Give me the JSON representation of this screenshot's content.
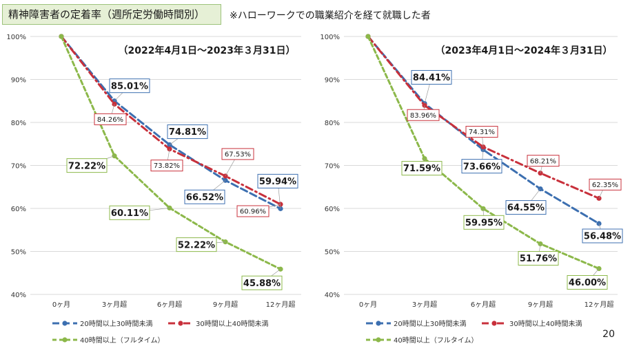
{
  "header": {
    "title": "精神障害者の定着率（週所定労働時間別）",
    "note": "※ハローワークでの職業紹介を経て就職した者"
  },
  "page_number": "20",
  "colors": {
    "blue": "#3c6fb0",
    "red": "#c8303b",
    "green": "#8cb84a",
    "grid": "#d9d9d9"
  },
  "chart_data": [
    {
      "type": "line",
      "title": "（2022年4月1日～2023年３月31日）",
      "categories": [
        "0ヶ月",
        "3ヶ月超",
        "6ヶ月超",
        "9ヶ月超",
        "12ヶ月超"
      ],
      "ylim": [
        40,
        100
      ],
      "y_ticks": [
        "40%",
        "50%",
        "60%",
        "70%",
        "80%",
        "90%",
        "100%"
      ],
      "grid": true,
      "legend_position": "bottom",
      "series": [
        {
          "name": "20時間以上30時間未満",
          "values": [
            100,
            85.01,
            74.81,
            66.52,
            59.94
          ],
          "labels": [
            "",
            "85.01%",
            "74.81%",
            "66.52%",
            "59.94%"
          ]
        },
        {
          "name": "30時間以上40時間未満",
          "values": [
            100,
            84.26,
            73.82,
            67.53,
            60.96
          ],
          "labels": [
            "",
            "84.26%",
            "73.82%",
            "67.53%",
            "60.96%"
          ]
        },
        {
          "name": "40時間以上（フルタイム）",
          "values": [
            100,
            72.22,
            60.11,
            52.22,
            45.88
          ],
          "labels": [
            "",
            "72.22%",
            "60.11%",
            "52.22%",
            "45.88%"
          ]
        }
      ]
    },
    {
      "type": "line",
      "title": "（2023年4月1日～2024年３月31日）",
      "categories": [
        "0ヶ月",
        "3ヶ月超",
        "6ヶ月超",
        "9ヶ月超",
        "12ヶ月超"
      ],
      "ylim": [
        40,
        100
      ],
      "y_ticks": [
        "40%",
        "50%",
        "60%",
        "70%",
        "80%",
        "90%",
        "100%"
      ],
      "grid": true,
      "legend_position": "bottom",
      "series": [
        {
          "name": "20時間以上30時間未満",
          "values": [
            100,
            84.41,
            73.66,
            64.55,
            56.48
          ],
          "labels": [
            "",
            "84.41%",
            "73.66%",
            "64.55%",
            "56.48%"
          ]
        },
        {
          "name": "30時間以上40時間未満",
          "values": [
            100,
            83.96,
            74.31,
            68.21,
            62.35
          ],
          "labels": [
            "",
            "83.96%",
            "74.31%",
            "68.21%",
            "62.35%"
          ]
        },
        {
          "name": "40時間以上（フルタイム）",
          "values": [
            100,
            71.59,
            59.95,
            51.76,
            46.0
          ],
          "labels": [
            "",
            "71.59%",
            "59.95%",
            "51.76%",
            "46.00%"
          ]
        }
      ]
    }
  ]
}
